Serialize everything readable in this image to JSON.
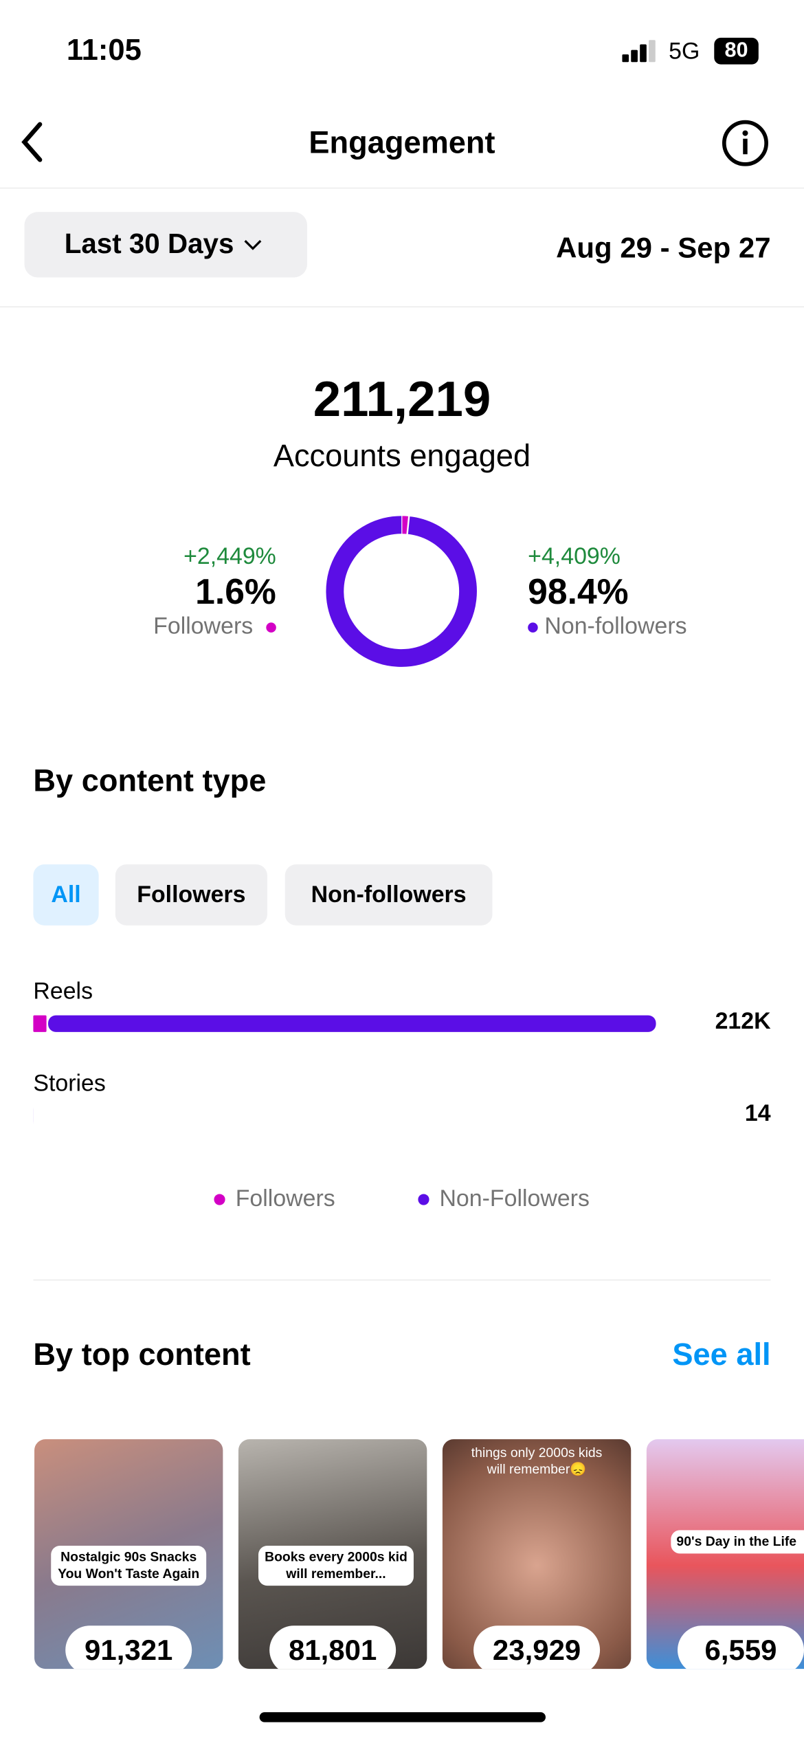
{
  "status": {
    "time": "11:05",
    "network": "5G",
    "battery": "80"
  },
  "header": {
    "title": "Engagement"
  },
  "filter": {
    "range": "Last 30 Days",
    "dates": "Aug 29 - Sep 27"
  },
  "summary": {
    "total": "211,219",
    "label": "Accounts engaged"
  },
  "audience": {
    "chart_data": {
      "type": "donut",
      "categories": [
        "Followers",
        "Non-followers"
      ],
      "values": [
        1.6,
        98.4
      ],
      "value_labels": [
        "1.6%",
        "98.4%"
      ],
      "changes": [
        "+2,449%",
        "+4,409%"
      ],
      "colors": [
        "#d300c5",
        "#5b0ee6"
      ]
    }
  },
  "content_type": {
    "title": "By content type",
    "tabs": [
      "All",
      "Followers",
      "Non-followers"
    ],
    "chart_data": {
      "type": "stacked-bar",
      "categories": [
        "Reels",
        "Stories"
      ],
      "xlim": [
        0,
        212000
      ],
      "series": [
        {
          "name": "Followers",
          "color": "#d300c5",
          "values": [
            4500,
            0
          ]
        },
        {
          "name": "Non-Followers",
          "color": "#5b0ee6",
          "values": [
            207500,
            14
          ]
        }
      ],
      "totals": [
        212000,
        14
      ],
      "total_labels": [
        "212K",
        "14"
      ]
    }
  },
  "top_content": {
    "title": "By top content",
    "link": "See all",
    "items": [
      {
        "caption": "Nostalgic 90s Snacks You Won't Taste Again",
        "count": "91,321"
      },
      {
        "caption": "Books every 2000s kid will remember...",
        "count": "81,801"
      },
      {
        "caption": "things only 2000s kids will remember😞",
        "count": "23,929"
      },
      {
        "caption": "90's Day in the Life",
        "count": "6,559"
      }
    ]
  }
}
